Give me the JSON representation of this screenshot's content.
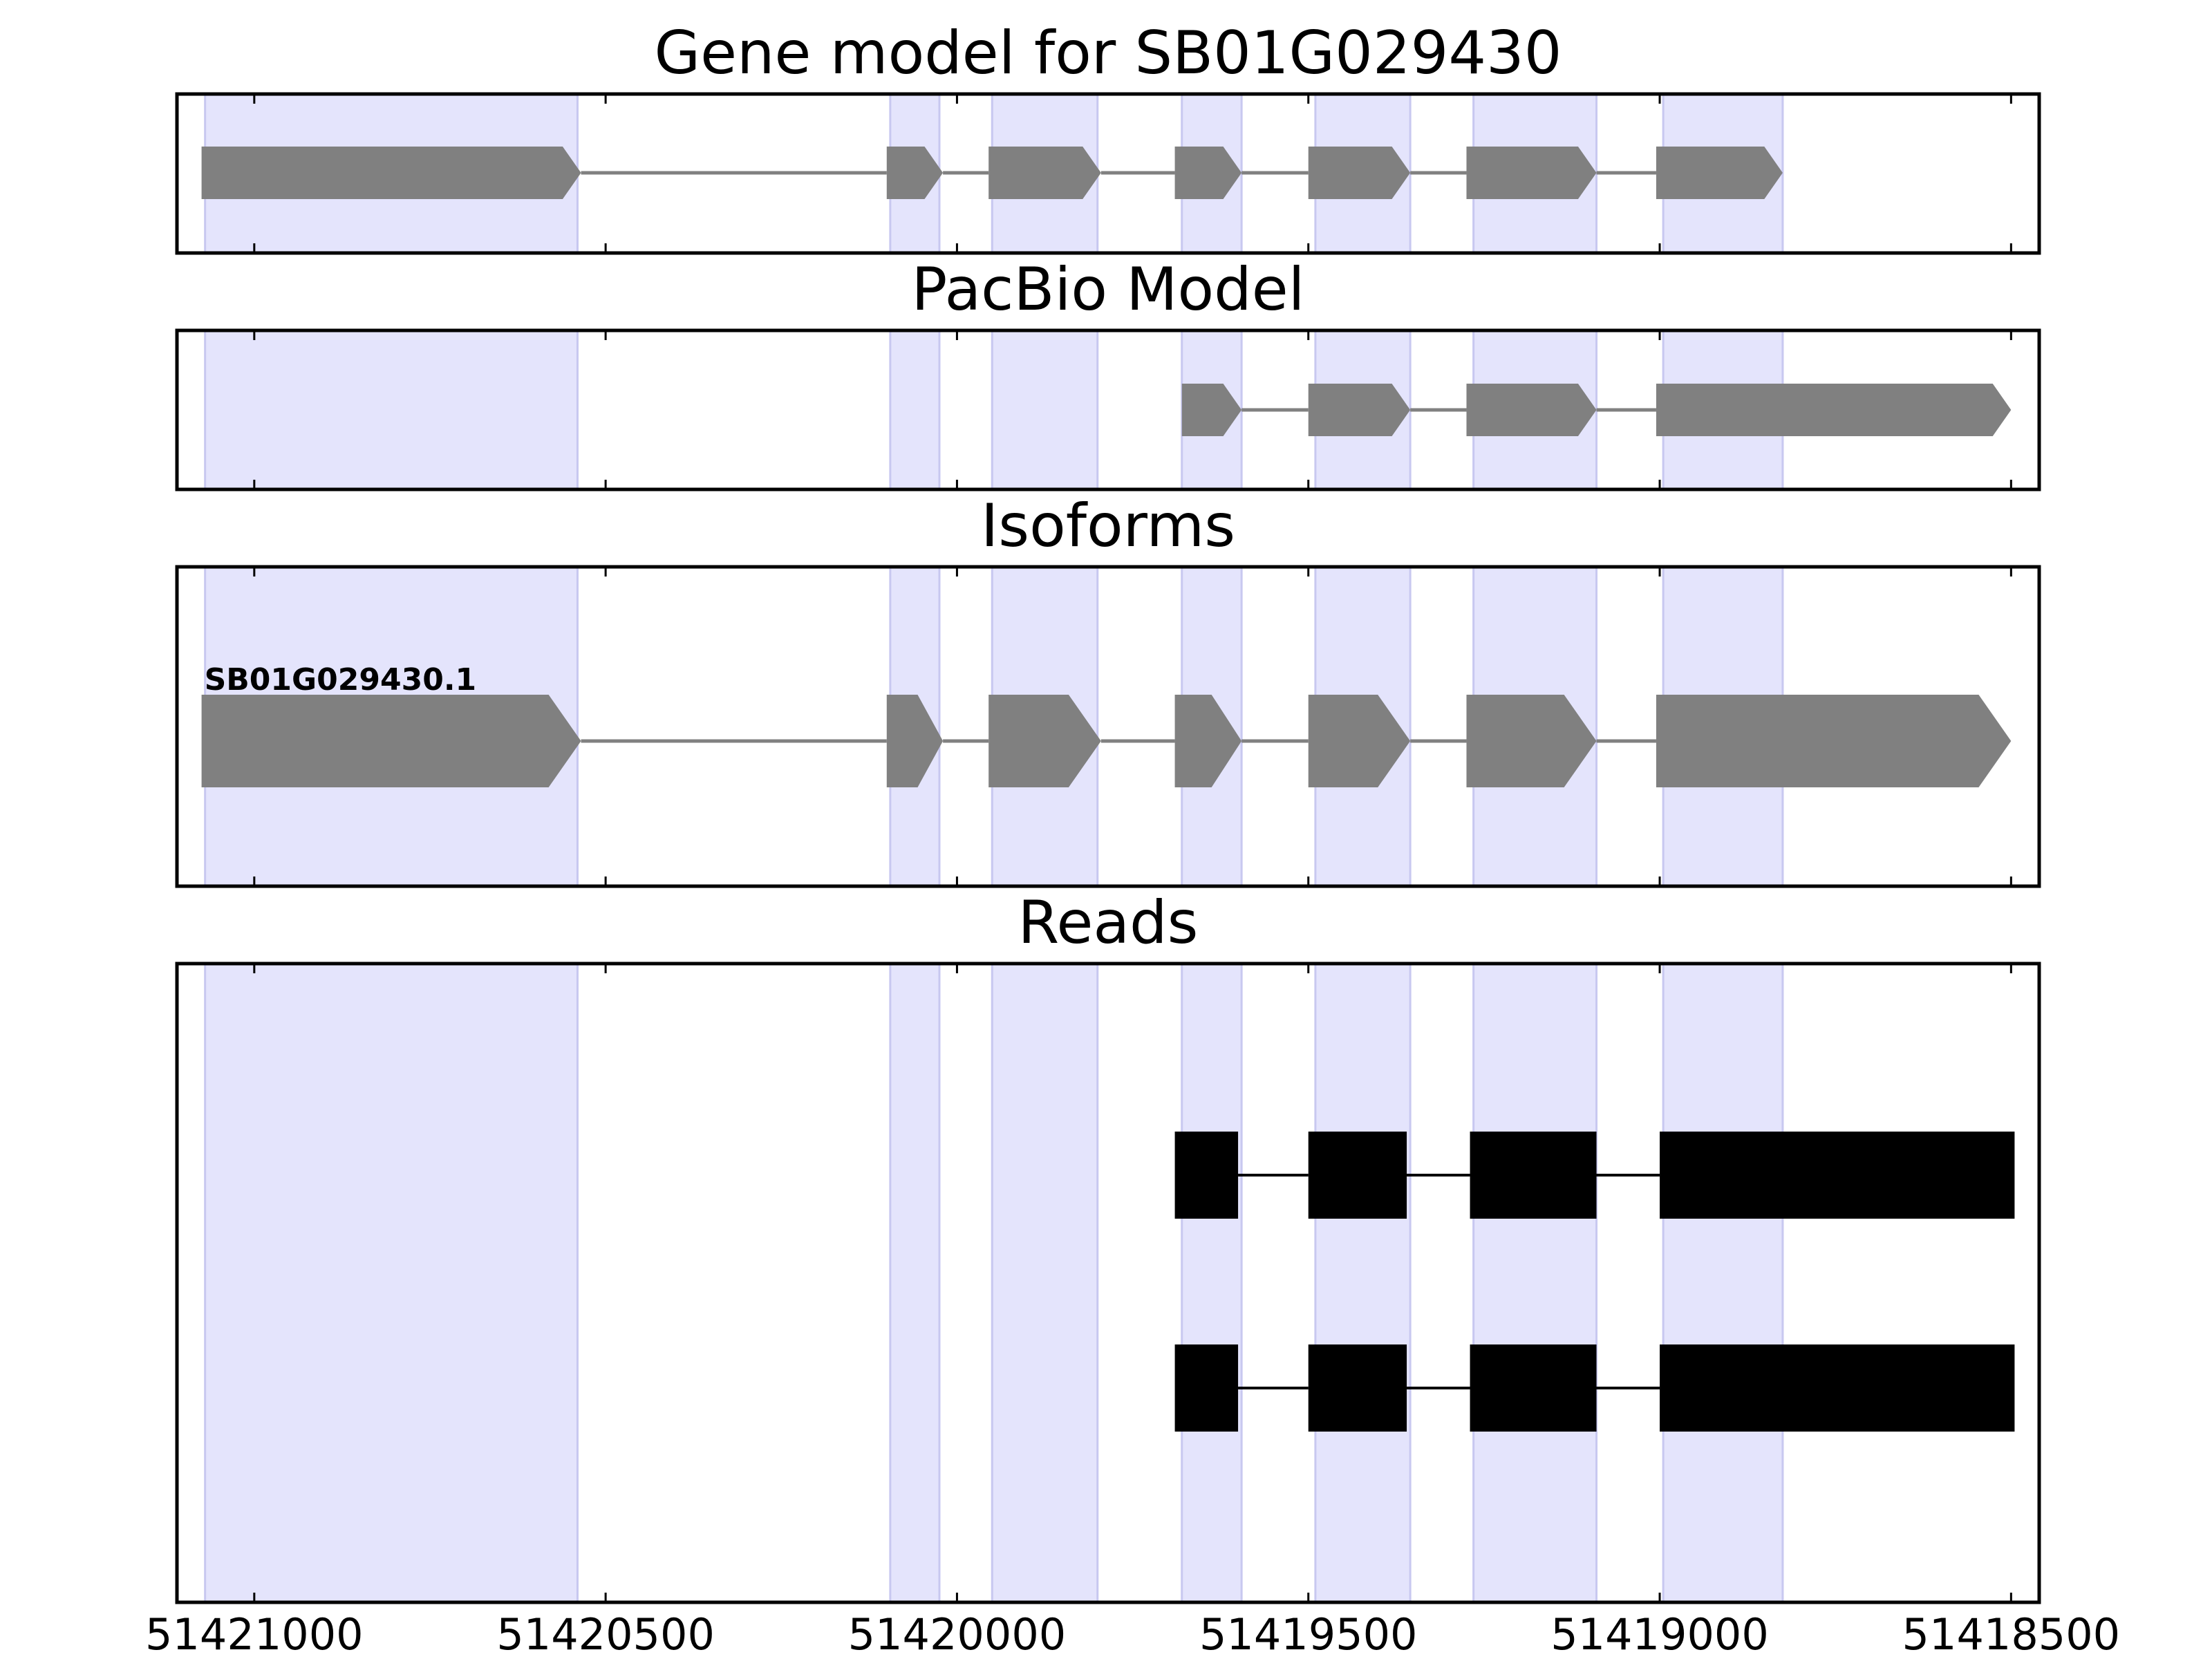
{
  "figure": {
    "x_domain": [
      51421110,
      51418460
    ],
    "x_ticks": [
      51421000,
      51420500,
      51420000,
      51419500,
      51419000,
      51418500
    ],
    "x_tick_labels": [
      "51421000",
      "51420500",
      "51420000",
      "51419500",
      "51419000",
      "51418500"
    ],
    "colors": {
      "exon_shade": "#e4e4fc",
      "gene_model": "#808080",
      "reads": "#000000",
      "frame": "#000000"
    }
  },
  "chart_data": {
    "type": "gene_structure",
    "exon_regions": [
      [
        51421070,
        51420540
      ],
      [
        51420095,
        51420025
      ],
      [
        51419950,
        51419800
      ],
      [
        51419680,
        51419595
      ],
      [
        51419490,
        51419355
      ],
      [
        51419265,
        51419090
      ],
      [
        51418995,
        51418825
      ]
    ],
    "panels": [
      {
        "title": "Gene model for SB01G029430",
        "kind": "arrows",
        "tracks": [
          {
            "label": "",
            "exons": [
              [
                51421075,
                51420535
              ],
              [
                51420100,
                51420020
              ],
              [
                51419955,
                51419795
              ],
              [
                51419690,
                51419595
              ],
              [
                51419500,
                51419355
              ],
              [
                51419275,
                51419090
              ],
              [
                51419005,
                51418825
              ]
            ]
          }
        ]
      },
      {
        "title": "PacBio Model",
        "kind": "arrows",
        "tracks": [
          {
            "label": "",
            "exons": [
              [
                51419680,
                51419595
              ],
              [
                51419500,
                51419355
              ],
              [
                51419275,
                51419090
              ],
              [
                51419005,
                51418500
              ]
            ]
          }
        ]
      },
      {
        "title": "Isoforms",
        "kind": "arrows",
        "tracks": [
          {
            "label": "SB01G029430.1",
            "exons": [
              [
                51421075,
                51420535
              ],
              [
                51420100,
                51420020
              ],
              [
                51419955,
                51419795
              ],
              [
                51419690,
                51419595
              ],
              [
                51419500,
                51419355
              ],
              [
                51419275,
                51419090
              ],
              [
                51419005,
                51418500
              ]
            ]
          }
        ]
      },
      {
        "title": "Reads",
        "kind": "blocks",
        "tracks": [
          {
            "label": "",
            "exons": [
              [
                51419690,
                51419600
              ],
              [
                51419500,
                51419360
              ],
              [
                51419270,
                51419090
              ],
              [
                51419000,
                51418495
              ]
            ]
          },
          {
            "label": "",
            "exons": [
              [
                51419690,
                51419600
              ],
              [
                51419500,
                51419360
              ],
              [
                51419270,
                51419090
              ],
              [
                51419000,
                51418495
              ]
            ]
          }
        ]
      }
    ]
  }
}
